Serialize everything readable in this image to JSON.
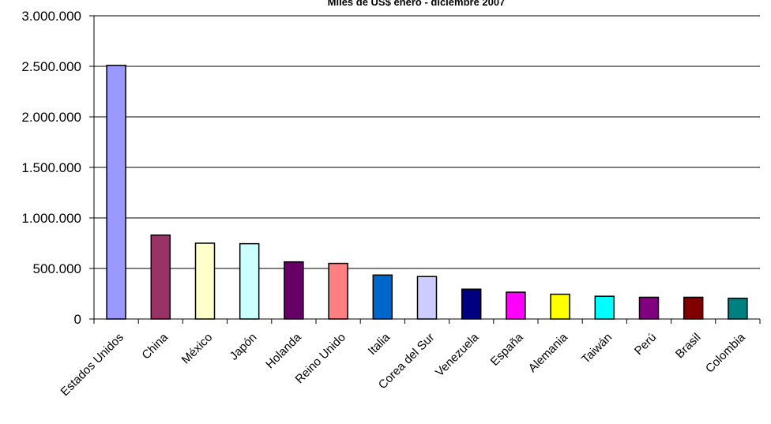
{
  "chart_data": {
    "type": "bar",
    "title": "Miles de US$ enero - diciembre 2007",
    "xlabel": "",
    "ylabel": "",
    "ylim": [
      0,
      3000000
    ],
    "yticks": [
      0,
      500000,
      1000000,
      1500000,
      2000000,
      2500000,
      3000000
    ],
    "ytick_labels": [
      "0",
      "500.000",
      "1.000.000",
      "1.500.000",
      "2.000.000",
      "2.500.000",
      "3.000.000"
    ],
    "grid": true,
    "legend": "none",
    "categories": [
      "Estados Unidos",
      "China",
      "México",
      "Japón",
      "Holanda",
      "Reino Unido",
      "Italia",
      "Corea del Sur",
      "Venezuela",
      "España",
      "Alemania",
      "Taiwán",
      "Perú",
      "Brasil",
      "Colombia"
    ],
    "values": [
      2510000,
      830000,
      750000,
      745000,
      565000,
      550000,
      435000,
      420000,
      295000,
      265000,
      245000,
      225000,
      215000,
      215000,
      205000
    ],
    "colors": [
      "#9999ff",
      "#993366",
      "#ffffcc",
      "#ccffff",
      "#660066",
      "#ff8080",
      "#0066cc",
      "#ccccff",
      "#000080",
      "#ff00ff",
      "#ffff00",
      "#00ffff",
      "#800080",
      "#800000",
      "#008080"
    ]
  }
}
